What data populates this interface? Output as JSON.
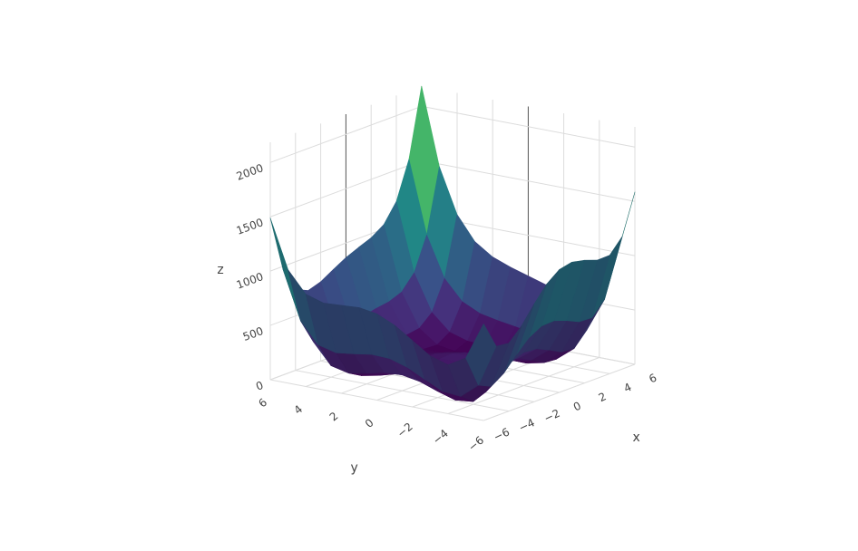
{
  "chart_data": {
    "type": "surface",
    "x_label": "x",
    "y_label": "y",
    "z_label": "z",
    "x": [
      -6,
      -5,
      -4,
      -3,
      -2,
      -1,
      0,
      1,
      2,
      3,
      4,
      5,
      6
    ],
    "y": [
      -6,
      -5,
      -4,
      -3,
      -2,
      -1,
      0,
      1,
      2,
      3,
      4,
      5,
      6
    ],
    "z": [
      [
        890,
        640,
        626,
        740,
        898,
        1040,
        1130,
        1156,
        1130,
        1088,
        1090,
        1220,
        1586
      ],
      [
        544,
        250,
        196,
        274,
        400,
        514,
        580,
        586,
        544,
        490,
        484,
        610,
        976
      ],
      [
        450,
        116,
        26,
        72,
        170,
        260,
        306,
        296,
        242,
        180,
        170,
        296,
        666
      ],
      [
        500,
        130,
        8,
        26,
        100,
        170,
        200,
        178,
        116,
        50,
        40,
        170,
        548
      ],
      [
        610,
        208,
        58,
        52,
        106,
        160,
        178,
        148,
        82,
        16,
        10,
        148,
        538
      ],
      [
        720,
        290,
        116,
        90,
        128,
        170,
        180,
        146,
        80,
        18,
        20,
        170,
        576
      ],
      [
        794,
        340,
        146,
        104,
        130,
        164,
        170,
        136,
        74,
        20,
        34,
        200,
        626
      ],
      [
        820,
        346,
        136,
        82,
        100,
        130,
        136,
        106,
        52,
        10,
        40,
        226,
        676
      ],
      [
        810,
        320,
        98,
        36,
        50,
        80,
        90,
        68,
        26,
        0,
        50,
        260,
        738
      ],
      [
        800,
        298,
        68,
        2,
        16,
        50,
        68,
        58,
        32,
        26,
        100,
        338,
        848
      ],
      [
        850,
        340,
        106,
        40,
        58,
        100,
        130,
        136,
        130,
        148,
        250,
        520,
        1066
      ],
      [
        1044,
        530,
        296,
        234,
        260,
        314,
        360,
        386,
        404,
        450,
        584,
        890,
        1476
      ],
      [
        1490,
        976,
        746,
        692,
        730,
        800,
        866,
        916,
        962,
        1040,
        1210,
        1556,
        2186
      ]
    ],
    "xlim": [
      -6,
      6
    ],
    "ylim": [
      -6,
      6
    ],
    "zlim": [
      0,
      2186
    ],
    "xticks": [
      {
        "value": -6,
        "label": "−6"
      },
      {
        "value": -4,
        "label": "−4"
      },
      {
        "value": -2,
        "label": "−2"
      },
      0,
      2,
      4,
      6
    ],
    "yticks": [
      {
        "value": -6,
        "label": "−6"
      },
      {
        "value": -4,
        "label": "−4"
      },
      {
        "value": -2,
        "label": "−2"
      },
      0,
      2,
      4,
      6
    ],
    "zticks": [
      0,
      500,
      1000,
      1500,
      2000
    ],
    "grid": true,
    "colorscale": [
      "#440154",
      "#472d7b",
      "#3b528b",
      "#2c728e",
      "#21918c",
      "#28ae80",
      "#5ec962",
      "#addc30",
      "#fde725"
    ]
  }
}
